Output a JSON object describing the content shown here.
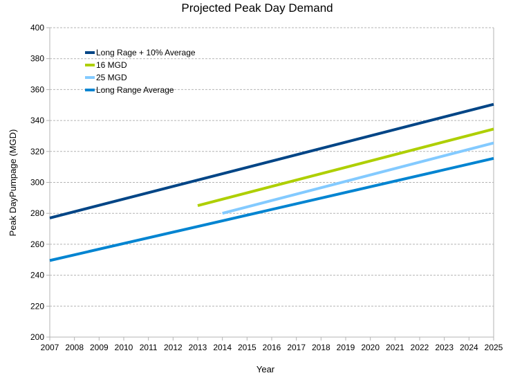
{
  "chart_data": {
    "type": "line",
    "title": "Projected Peak Day Demand",
    "xlabel": "Year",
    "ylabel": "Peak DayPumpage (MGD)",
    "xlim": [
      2007,
      2025
    ],
    "ylim": [
      200,
      400
    ],
    "x_ticks": [
      "2007",
      "2008",
      "2009",
      "2010",
      "2011",
      "2012",
      "2013",
      "2014",
      "2015",
      "2016",
      "2017",
      "2018",
      "2019",
      "2020",
      "2021",
      "2022",
      "2023",
      "2024",
      "2025"
    ],
    "y_ticks": [
      "200",
      "220",
      "240",
      "260",
      "280",
      "300",
      "320",
      "340",
      "360",
      "380",
      "400"
    ],
    "grid": "horizontal dashed",
    "legend_position": "top-left inside",
    "series": [
      {
        "name": "Long Rage + 10% Average",
        "color": "#004586",
        "points": [
          [
            2007,
            277
          ],
          [
            2025,
            350.5
          ]
        ]
      },
      {
        "name": "16 MGD",
        "color": "#aecf00",
        "points": [
          [
            2013,
            285
          ],
          [
            2025,
            334.5
          ]
        ]
      },
      {
        "name": "25 MGD",
        "color": "#83caff",
        "points": [
          [
            2014,
            280
          ],
          [
            2025,
            325.5
          ]
        ]
      },
      {
        "name": "Long Range Average",
        "color": "#0084d1",
        "points": [
          [
            2007,
            249.5
          ],
          [
            2025,
            315.5
          ]
        ]
      }
    ]
  }
}
